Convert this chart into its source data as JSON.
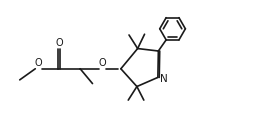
{
  "bg_color": "#ffffff",
  "line_color": "#1a1a1a",
  "line_width": 1.2,
  "figsize": [
    2.59,
    1.4
  ],
  "dpi": 100,
  "xlim": [
    0,
    10.5
  ],
  "ylim": [
    1.5,
    6.5
  ]
}
